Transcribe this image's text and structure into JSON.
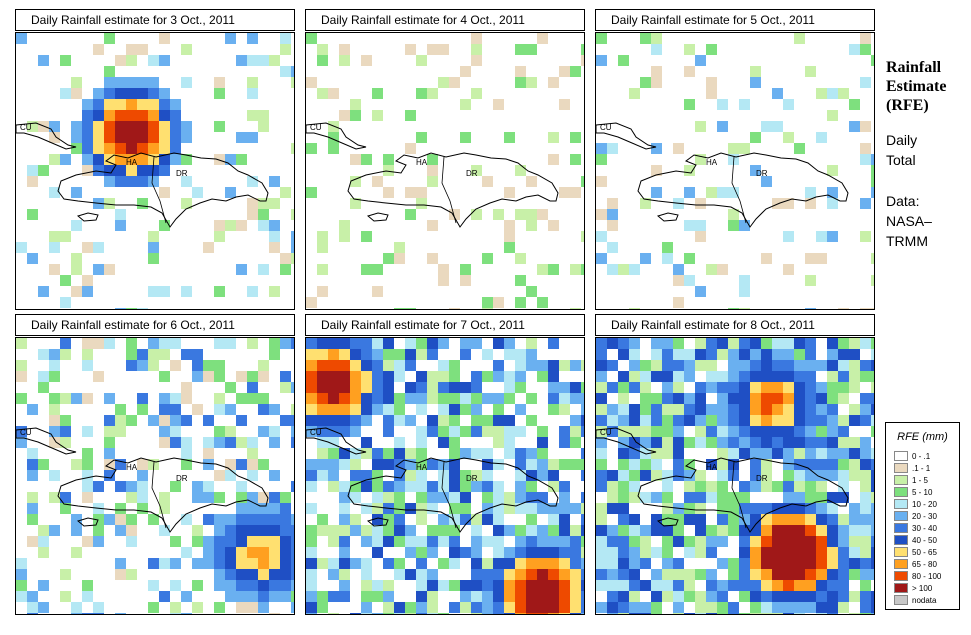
{
  "panels": [
    {
      "title": "Daily Rainfall estimate for  3 Oct., 2011",
      "day": 3
    },
    {
      "title": "Daily Rainfall estimate for  4 Oct., 2011",
      "day": 4
    },
    {
      "title": "Daily Rainfall estimate for  5 Oct., 2011",
      "day": 5
    },
    {
      "title": "Daily Rainfall estimate for  6 Oct., 2011",
      "day": 6
    },
    {
      "title": "Daily Rainfall estimate for  7 Oct., 2011",
      "day": 7
    },
    {
      "title": "Daily Rainfall estimate for  8 Oct., 2011",
      "day": 8
    }
  ],
  "map_labels": {
    "cu": "CU",
    "ha": "HA",
    "dr": "DR"
  },
  "sidebar": {
    "heading_line1": "Rainfall",
    "heading_line2": "Estimate",
    "heading_line3": "(RFE)",
    "daily": "Daily",
    "total": "Total",
    "data_label": "Data:",
    "source_line1": "NASA–",
    "source_line2": "TRMM"
  },
  "legend": {
    "title": "RFE (mm)",
    "items": [
      {
        "label": "0 - .1",
        "color": "#ffffff"
      },
      {
        "label": ".1 - 1",
        "color": "#ead9bf"
      },
      {
        "label": "1 - 5",
        "color": "#c8f0a8"
      },
      {
        "label": "5 - 10",
        "color": "#7ee07e"
      },
      {
        "label": "10 - 20",
        "color": "#b4e8f4"
      },
      {
        "label": "20 - 30",
        "color": "#6ab0f0"
      },
      {
        "label": "30 - 40",
        "color": "#3a78e0"
      },
      {
        "label": "40 - 50",
        "color": "#1f4fc4"
      },
      {
        "label": "50 - 65",
        "color": "#ffe070"
      },
      {
        "label": "65 - 80",
        "color": "#ffa020"
      },
      {
        "label": "80 - 100",
        "color": "#ee4a00"
      },
      {
        "label": "> 100",
        "color": "#a01818"
      },
      {
        "label": "nodata",
        "color": "#c8c8c8"
      }
    ]
  }
}
